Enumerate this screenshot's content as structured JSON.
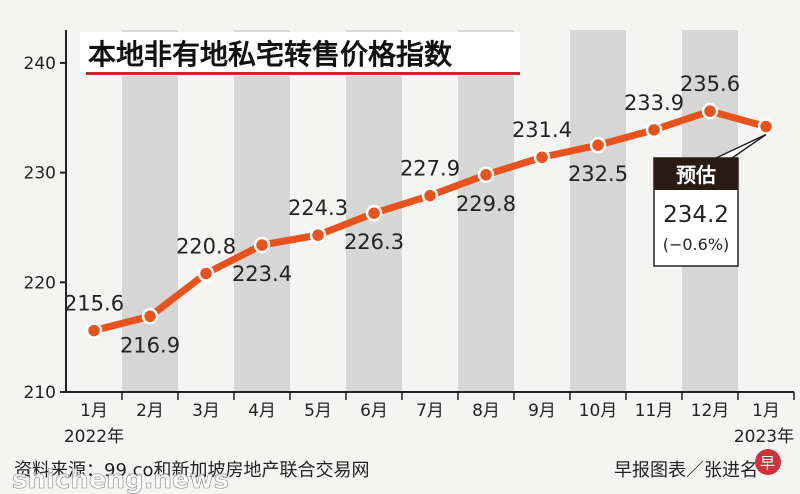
{
  "chart_data": {
    "type": "line",
    "title": "本地非有地私宅转售价格指数",
    "categories": [
      "1月",
      "2月",
      "3月",
      "4月",
      "5月",
      "6月",
      "7月",
      "8月",
      "9月",
      "10月",
      "11月",
      "12月",
      "1月"
    ],
    "year_start": "2022年",
    "year_end": "2023年",
    "values": [
      215.6,
      216.9,
      220.8,
      223.4,
      224.3,
      226.3,
      227.9,
      229.8,
      231.4,
      232.5,
      233.9,
      235.6,
      234.2
    ],
    "value_labels": [
      "215.6",
      "216.9",
      "220.8",
      "223.4",
      "224.3",
      "226.3",
      "227.9",
      "229.8",
      "231.4",
      "232.5",
      "233.9",
      "235.6",
      "234.2"
    ],
    "y_ticks": [
      210,
      220,
      230,
      240
    ],
    "ylim": [
      210,
      243
    ],
    "estimate": {
      "label": "预估",
      "value": "234.2",
      "change": "(−0.6%)"
    },
    "colors": {
      "line": "#e8521c",
      "marker": "#e8521c",
      "stripe": "#d6d6d6",
      "title_underline": "#c8282a"
    }
  },
  "footer": {
    "source": "资料来源：99.co和新加坡房地产联合交易网",
    "credit": "早报图表／张进名",
    "watermark": "shicheng.news"
  }
}
